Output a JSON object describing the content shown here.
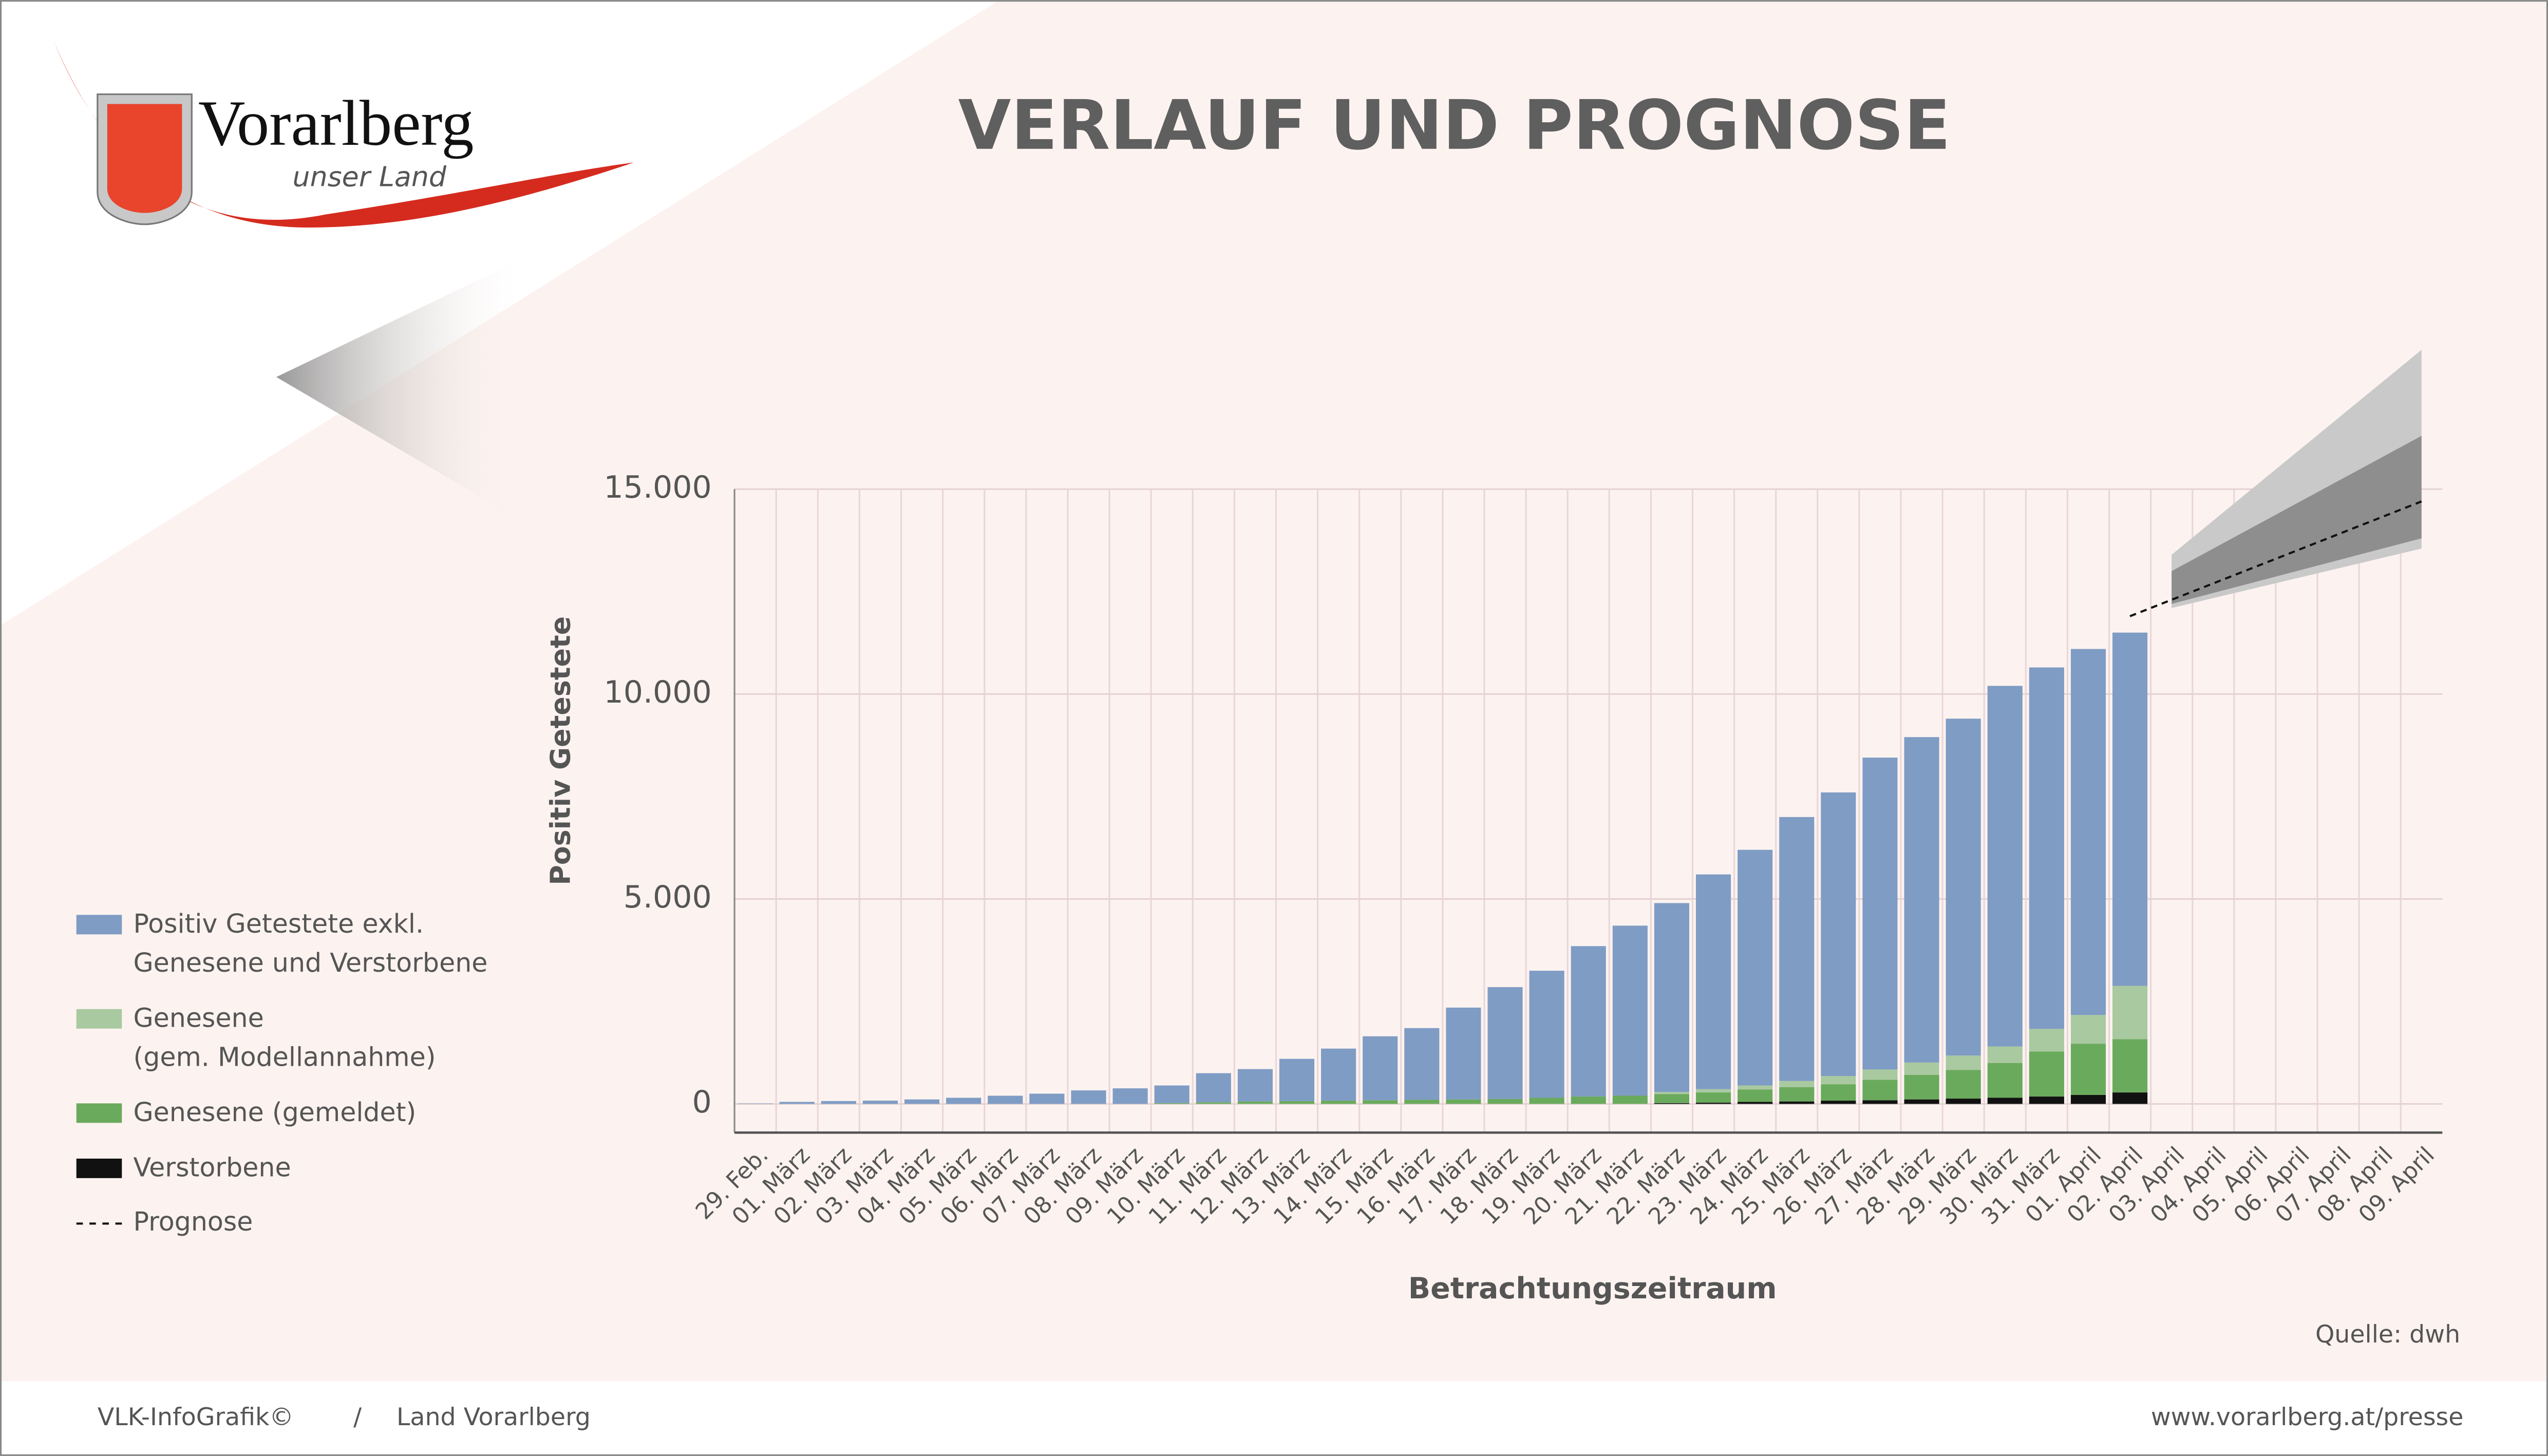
{
  "header": {
    "logo_title": "Vorarlberg",
    "logo_subtitle": "unser Land"
  },
  "footer": {
    "left": "VLK-InfoGrafik©",
    "separator": "/",
    "middle": "Land Vorarlberg",
    "right": "www.vorarlberg.at/presse"
  },
  "chart_data": {
    "type": "stacked_bar",
    "title": "VERLAUF UND PROGNOSE",
    "y_label": "Positiv Getestete",
    "x_label": "Betrachtungszeitraum",
    "source": "Quelle: dwh",
    "categories": [
      "29. Feb.",
      "01. März",
      "02. März",
      "03. März",
      "04. März",
      "05. März",
      "06. März",
      "07. März",
      "08. März",
      "09. März",
      "10. März",
      "11. März",
      "12. März",
      "13. März",
      "14. März",
      "15. März",
      "16. März",
      "17. März",
      "18. März",
      "19. März",
      "20. März",
      "21. März",
      "22. März",
      "23. März",
      "24. März",
      "25. März",
      "26. März",
      "27. März",
      "28. März",
      "29. März",
      "30. März",
      "31. März",
      "01. April",
      "02. April",
      "03. April",
      "04. April",
      "05. April",
      "06. April",
      "07. April",
      "08. April",
      "09. April"
    ],
    "series": [
      {
        "name": "Verstorbene",
        "color": "#111111",
        "values": [
          0,
          0,
          0,
          0,
          0,
          0,
          0,
          0,
          0,
          0,
          0,
          0,
          0,
          0,
          0,
          0,
          0,
          0,
          0,
          0,
          0,
          0,
          20,
          30,
          50,
          60,
          80,
          90,
          110,
          130,
          150,
          180,
          220,
          280,
          null,
          null,
          null,
          null,
          null,
          null,
          null
        ]
      },
      {
        "name": "Genesene (gemeldet)",
        "color": "#6aaa5c",
        "values": [
          0,
          0,
          0,
          0,
          0,
          0,
          0,
          0,
          0,
          0,
          20,
          40,
          60,
          70,
          80,
          90,
          100,
          110,
          120,
          150,
          180,
          200,
          220,
          250,
          300,
          350,
          400,
          500,
          600,
          700,
          850,
          1100,
          1250,
          1300,
          null,
          null,
          null,
          null,
          null,
          null,
          null
        ]
      },
      {
        "name": "Genesene\n(gem. Modellannahme)",
        "color": "#a9c9a0",
        "values": [
          0,
          0,
          0,
          0,
          0,
          0,
          0,
          0,
          0,
          0,
          0,
          0,
          0,
          0,
          0,
          0,
          0,
          0,
          0,
          0,
          0,
          0,
          50,
          80,
          100,
          150,
          200,
          250,
          300,
          350,
          400,
          550,
          700,
          1300,
          null,
          null,
          null,
          null,
          null,
          null,
          null
        ]
      },
      {
        "name": "Positiv Getestete exkl.\nGenesene und Verstorbene",
        "color": "#7f9cc4",
        "values": [
          10,
          50,
          70,
          80,
          110,
          150,
          200,
          250,
          330,
          380,
          430,
          710,
          790,
          1030,
          1270,
          1560,
          1750,
          2240,
          2730,
          3100,
          3670,
          4150,
          4610,
          5240,
          5750,
          6440,
          6920,
          7610,
          7940,
          8220,
          8800,
          8820,
          8930,
          8620,
          null,
          null,
          null,
          null,
          null,
          null,
          null
        ]
      }
    ],
    "prognose": {
      "name": "Prognose",
      "color": "#111111",
      "x": [
        "02. April",
        "09. April"
      ],
      "values": [
        11900,
        14700
      ]
    },
    "band_outer": {
      "color": "#c9c9c9",
      "x": [
        "03. April",
        "09. April"
      ],
      "low": [
        12100,
        13550
      ],
      "high": [
        13400,
        18400
      ]
    },
    "band_inner": {
      "color": "#8e8e8e",
      "x": [
        "03. April",
        "09. April"
      ],
      "low": [
        12200,
        13800
      ],
      "high": [
        13000,
        16300
      ]
    },
    "ylim": [
      -700,
      15000
    ],
    "yticks": [
      0,
      {
        "value": 5000,
        "label": "5.000"
      },
      {
        "value": 10000,
        "label": "10.000"
      },
      {
        "value": 15000,
        "label": "15.000"
      }
    ],
    "grid": true
  }
}
